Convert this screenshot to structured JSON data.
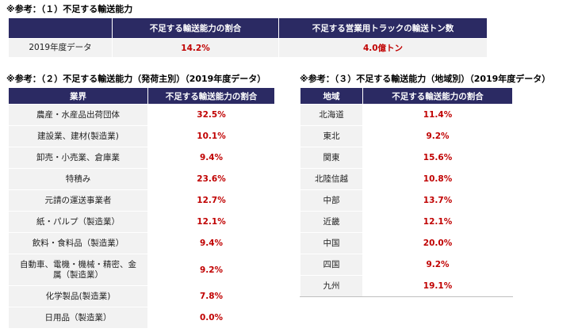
{
  "top": {
    "title": "※参考：（１）不足する輸送能力",
    "headers": [
      "",
      "不足する輸送能力の割合",
      "不足する営業用トラックの輸送トン数"
    ],
    "row": {
      "label": "2019年度データ",
      "ratio": "14.2%",
      "tonnage": "4.0億トン"
    }
  },
  "by_shipper": {
    "title": "※参考：（２）不足する輸送能力（発荷主別）（2019年度データ）",
    "headers": [
      "業界",
      "不足する輸送能力の割合"
    ],
    "rows": [
      {
        "label": "農産・水産品出荷団体",
        "value": "32.5%"
      },
      {
        "label": "建設業、建材(製造業)",
        "value": "10.1%"
      },
      {
        "label": "卸売・小売業、倉庫業",
        "value": "9.4%"
      },
      {
        "label": "特積み",
        "value": "23.6%"
      },
      {
        "label": "元請の運送事業者",
        "value": "12.7%"
      },
      {
        "label": "紙・パルプ（製造業）",
        "value": "12.1%"
      },
      {
        "label": "飲料・食料品（製造業）",
        "value": "9.4%"
      },
      {
        "label": "自動車、電機・機械・精密、金属（製造業）",
        "value": "9.2%"
      },
      {
        "label": "化学製品(製造業)",
        "value": "7.8%"
      },
      {
        "label": "日用品（製造業）",
        "value": "0.0%"
      }
    ]
  },
  "by_region": {
    "title": "※参考：（３）不足する輸送能力（地域別）（2019年度データ）",
    "headers": [
      "地域",
      "不足する輸送能力の割合"
    ],
    "rows": [
      {
        "label": "北海道",
        "value": "11.4%"
      },
      {
        "label": "東北",
        "value": "9.2%"
      },
      {
        "label": "関東",
        "value": "15.6%"
      },
      {
        "label": "北陸信越",
        "value": "10.8%"
      },
      {
        "label": "中部",
        "value": "13.7%"
      },
      {
        "label": "近畿",
        "value": "12.1%"
      },
      {
        "label": "中国",
        "value": "20.0%"
      },
      {
        "label": "四国",
        "value": "9.2%"
      },
      {
        "label": "九州",
        "value": "19.1%"
      }
    ]
  }
}
